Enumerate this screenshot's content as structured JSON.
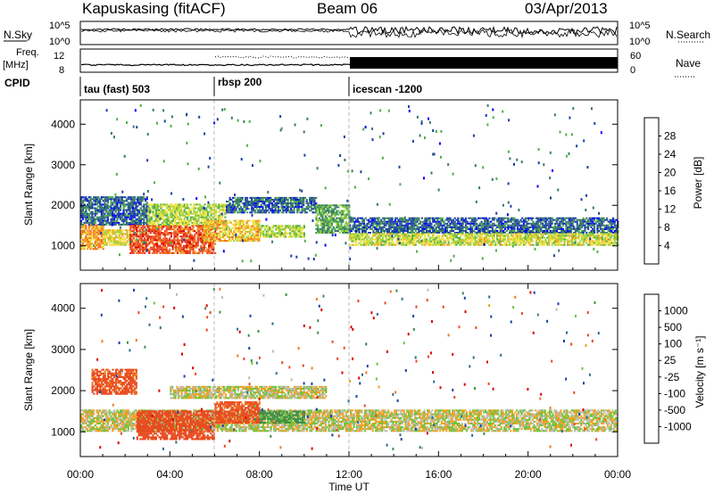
{
  "header": {
    "station": "Kapuskasing (fitACF)",
    "beam": "Beam 06",
    "date": "03/Apr/2013"
  },
  "noise_panel": {
    "left_label": "N.Sky",
    "right_label": "N.Search",
    "left_ticks": [
      "10^5",
      "10^0"
    ],
    "right_ticks": [
      "10^5",
      "10^0"
    ]
  },
  "freq_panel": {
    "left_label_1": "Freq.",
    "left_label_2": "[MHz]",
    "right_label": "Nave",
    "left_ticks": [
      "12",
      "8"
    ],
    "right_ticks": [
      "60",
      "0"
    ]
  },
  "cpid": {
    "label": "CPID",
    "segments": [
      {
        "name": "tau (fast) 503",
        "start_hour": 0
      },
      {
        "name": "rbsp 200",
        "start_hour": 6
      },
      {
        "name": "icescan -1200",
        "start_hour": 12
      }
    ]
  },
  "power_colorbar": {
    "label": "Power [dB]",
    "ticks": [
      "4",
      "8",
      "12",
      "16",
      "20",
      "24",
      "28"
    ],
    "colors": [
      "#0000ff",
      "#1c3fa8",
      "#3a7a6a",
      "#4fb04a",
      "#9fd23a",
      "#f2e040",
      "#f5a020",
      "#ef6a20",
      "#e83a1e",
      "#dc0000"
    ]
  },
  "velocity_colorbar": {
    "label": "Velocity [m s⁻¹]",
    "ticks": [
      "1000",
      "500",
      "100",
      "25",
      "-25",
      "-100",
      "-500",
      "-1000"
    ],
    "colors": [
      "#1c3fa8",
      "#2f6e8c",
      "#3f8f4a",
      "#6cc43a",
      "#bdbdb0",
      "#f0a020",
      "#f07a20",
      "#e84a1e",
      "#dc0000"
    ]
  },
  "chart_data": [
    {
      "type": "heatmap",
      "panel": "power",
      "ylabel": "Slant Range [km]",
      "xlim": [
        0,
        24
      ],
      "ylim": [
        400,
        4600
      ],
      "yticks": [
        1000,
        2000,
        3000,
        4000
      ],
      "ytick_labels": [
        "1000",
        "2000",
        "3000",
        "4000"
      ],
      "xticks": [
        0,
        4,
        8,
        12,
        16,
        20,
        24
      ],
      "xtick_labels": [
        "00:00",
        "04:00",
        "08:00",
        "12:00",
        "16:00",
        "20:00",
        "00:00"
      ],
      "zlabel": "Power [dB]",
      "zlim": [
        0,
        30
      ],
      "regions": [
        {
          "t0": 0.0,
          "t1": 1.0,
          "r0": 900,
          "r1": 1500,
          "p": 20
        },
        {
          "t0": 0.0,
          "t1": 3.0,
          "r0": 1500,
          "r1": 2200,
          "p": 6
        },
        {
          "t0": 1.0,
          "t1": 2.2,
          "r0": 1000,
          "r1": 1400,
          "p": 16
        },
        {
          "t0": 2.2,
          "t1": 6.0,
          "r0": 800,
          "r1": 1500,
          "p": 24
        },
        {
          "t0": 3.0,
          "t1": 6.5,
          "r0": 1500,
          "r1": 2000,
          "p": 14
        },
        {
          "t0": 5.5,
          "t1": 8.0,
          "r0": 1100,
          "r1": 1600,
          "p": 18
        },
        {
          "t0": 6.5,
          "t1": 10.5,
          "r0": 1800,
          "r1": 2200,
          "p": 6
        },
        {
          "t0": 8.0,
          "t1": 10.0,
          "r0": 1200,
          "r1": 1500,
          "p": 14
        },
        {
          "t0": 10.5,
          "t1": 12.0,
          "r0": 1300,
          "r1": 2000,
          "p": 10
        },
        {
          "t0": 12.0,
          "t1": 24.0,
          "r0": 1300,
          "r1": 1700,
          "p": 6
        },
        {
          "t0": 12.0,
          "t1": 24.0,
          "r0": 1000,
          "r1": 1300,
          "p": 15
        }
      ],
      "x_time_unit": "hours UT"
    },
    {
      "type": "heatmap",
      "panel": "velocity",
      "ylabel": "Slant Range [km]",
      "xlabel": "Time UT",
      "xlim": [
        0,
        24
      ],
      "ylim": [
        400,
        4600
      ],
      "yticks": [
        1000,
        2000,
        3000,
        4000
      ],
      "ytick_labels": [
        "1000",
        "2000",
        "3000",
        "4000"
      ],
      "xticks": [
        0,
        4,
        8,
        12,
        16,
        20,
        24
      ],
      "xtick_labels": [
        "00:00",
        "04:00",
        "08:00",
        "12:00",
        "16:00",
        "20:00",
        "00:00"
      ],
      "zlabel": "Velocity [m s⁻¹]",
      "zlim": [
        -1000,
        1000
      ],
      "regions": [
        {
          "t0": 0.0,
          "t1": 24.0,
          "r0": 1000,
          "r1": 1500,
          "v": 0
        },
        {
          "t0": 0.5,
          "t1": 2.5,
          "r0": 1900,
          "r1": 2500,
          "v": -300
        },
        {
          "t0": 2.5,
          "t1": 6.0,
          "r0": 800,
          "r1": 1500,
          "v": -400
        },
        {
          "t0": 4.0,
          "t1": 11.0,
          "r0": 1800,
          "r1": 2100,
          "v": 0
        },
        {
          "t0": 6.0,
          "t1": 8.0,
          "r0": 1200,
          "r1": 1700,
          "v": -300
        },
        {
          "t0": 8.0,
          "t1": 10.0,
          "r0": 1200,
          "r1": 1500,
          "v": 150
        }
      ],
      "x_time_unit": "hours UT"
    }
  ]
}
